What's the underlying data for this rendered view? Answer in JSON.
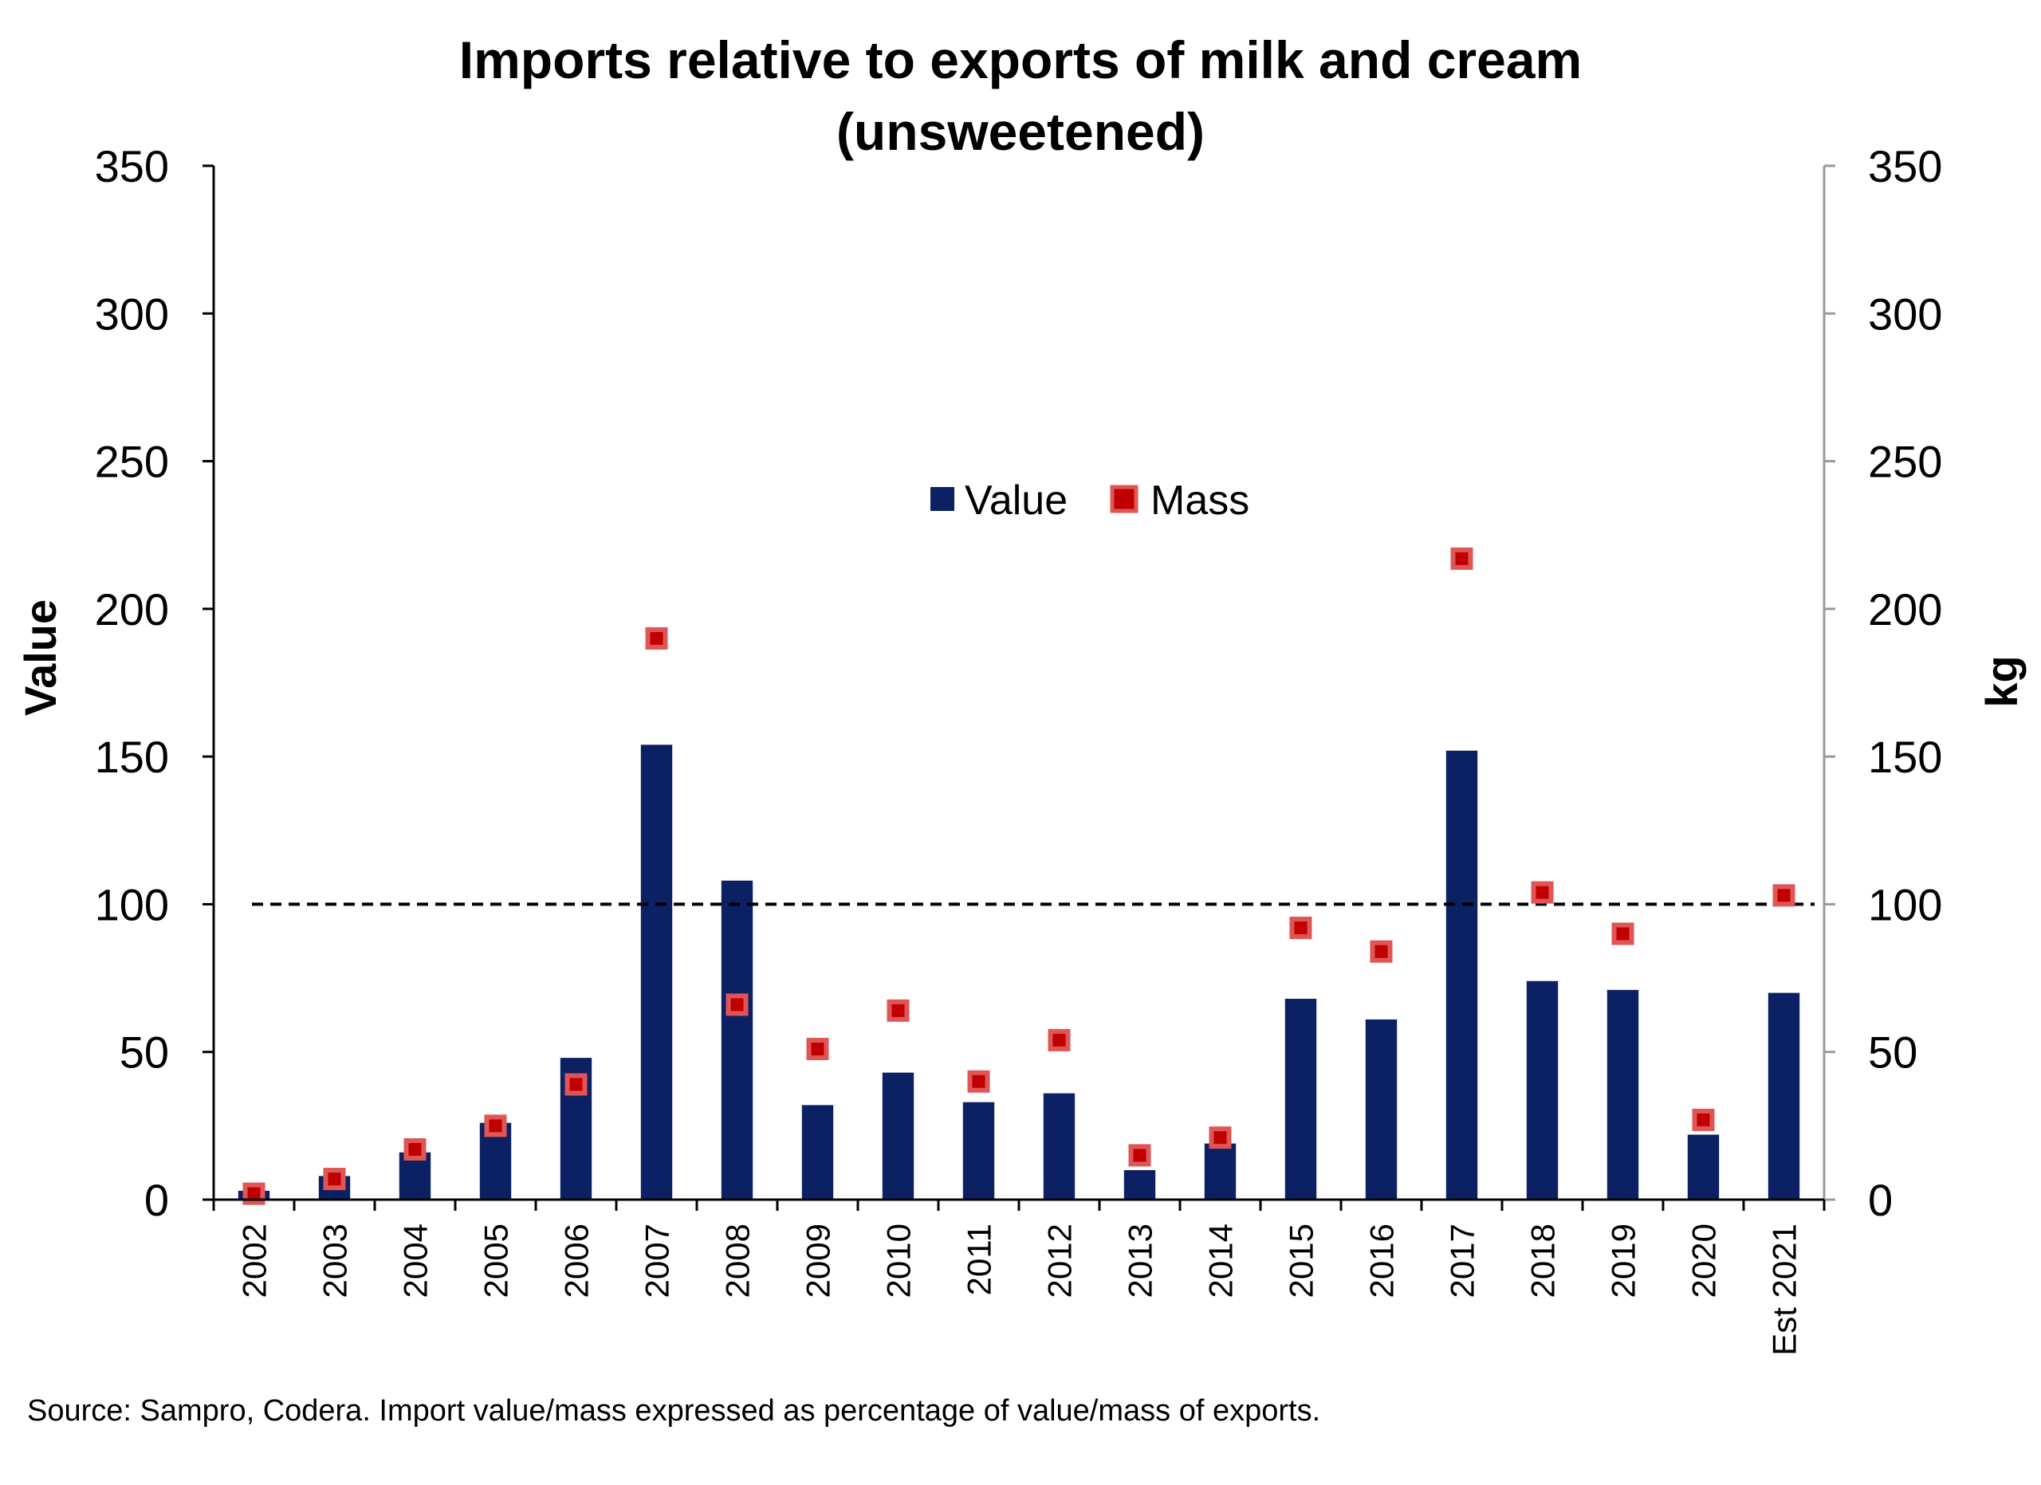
{
  "chart_data": {
    "type": "bar",
    "title": [
      "Imports relative to exports of milk and cream",
      "(unsweetened)"
    ],
    "categories": [
      "2002",
      "2003",
      "2004",
      "2005",
      "2006",
      "2007",
      "2008",
      "2009",
      "2010",
      "2011",
      "2012",
      "2013",
      "2014",
      "2015",
      "2016",
      "2017",
      "2018",
      "2019",
      "2020",
      "Est 2021"
    ],
    "series": [
      {
        "name": "Value",
        "kind": "bar",
        "axis": "left",
        "color": "#0b2163",
        "values": [
          3,
          8,
          16,
          26,
          48,
          154,
          108,
          32,
          43,
          33,
          36,
          10,
          19,
          68,
          61,
          152,
          74,
          71,
          22,
          70
        ]
      },
      {
        "name": "Mass",
        "kind": "marker",
        "axis": "right",
        "color": "#c00000",
        "edge_color": "#e05555",
        "values": [
          2,
          7,
          17,
          25,
          39,
          190,
          66,
          51,
          64,
          40,
          54,
          15,
          21,
          92,
          84,
          217,
          104,
          90,
          27,
          103
        ]
      }
    ],
    "reference_line": {
      "value": 100,
      "style": "dashed",
      "color": "#000000"
    },
    "ylabel": "Value",
    "y2label": "kg",
    "ylim": [
      0,
      350
    ],
    "y2lim": [
      0,
      350
    ],
    "yticks": [
      0,
      50,
      100,
      150,
      200,
      250,
      300,
      350
    ],
    "y2ticks": [
      0,
      50,
      100,
      150,
      200,
      250,
      300,
      350
    ],
    "legend": {
      "placement": "top-center",
      "entries": [
        "Value",
        "Mass"
      ]
    },
    "grid": false,
    "source": "Source: Sampro, Codera. Import value/mass expressed as percentage of value/mass of exports."
  }
}
